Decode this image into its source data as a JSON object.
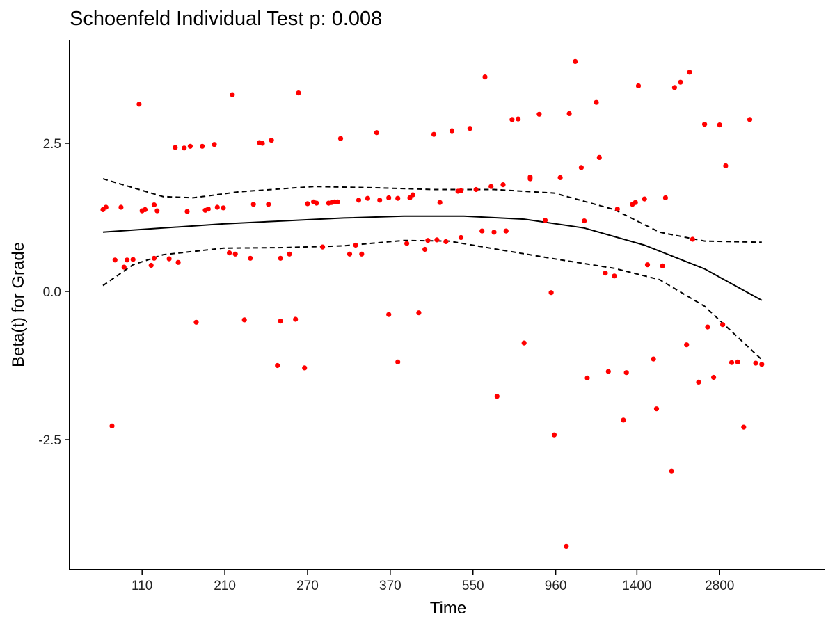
{
  "chart_data": {
    "type": "scatter",
    "title": "Schoenfeld Individual Test p: 0.008",
    "xlabel": "Time",
    "ylabel": "Beta(t) for Grade",
    "x_scale": "ordinal-rank",
    "x_tick_labels": [
      "110",
      "210",
      "270",
      "370",
      "550",
      "960",
      "1400",
      "2800"
    ],
    "x_tick_ranks": [
      13,
      40.5,
      68,
      95.5,
      123,
      150.5,
      177.5,
      205
    ],
    "x_rank_range": [
      0,
      229
    ],
    "y_tick_labels": [
      "2.5",
      "0.0",
      "-2.5"
    ],
    "y_tick_values": [
      2.5,
      0.0,
      -2.5
    ],
    "ylim": [
      -4.7,
      4.2
    ],
    "grid": false,
    "legend": "none",
    "colors": {
      "points": "#ff0000",
      "lines": "#000000"
    },
    "series": [
      {
        "type": "scatter",
        "points": [
          [
            0,
            1.38
          ],
          [
            1,
            1.42
          ],
          [
            3,
            -2.27
          ],
          [
            4,
            0.53
          ],
          [
            6,
            1.42
          ],
          [
            7,
            0.41
          ],
          [
            8,
            0.53
          ],
          [
            10,
            0.54
          ],
          [
            12,
            3.16
          ],
          [
            13,
            1.36
          ],
          [
            14,
            1.38
          ],
          [
            16,
            0.44
          ],
          [
            17,
            1.46
          ],
          [
            18,
            1.36
          ],
          [
            17,
            0.56
          ],
          [
            22,
            0.55
          ],
          [
            24,
            2.43
          ],
          [
            25,
            0.49
          ],
          [
            27,
            2.42
          ],
          [
            28,
            1.35
          ],
          [
            29,
            2.45
          ],
          [
            31,
            -0.52
          ],
          [
            33,
            2.45
          ],
          [
            34,
            1.37
          ],
          [
            35,
            1.39
          ],
          [
            37,
            2.48
          ],
          [
            38,
            1.42
          ],
          [
            40,
            1.41
          ],
          [
            42,
            0.65
          ],
          [
            43,
            3.32
          ],
          [
            44,
            0.63
          ],
          [
            47,
            -0.48
          ],
          [
            49,
            0.56
          ],
          [
            50,
            1.47
          ],
          [
            52,
            2.51
          ],
          [
            53,
            2.5
          ],
          [
            55,
            1.47
          ],
          [
            56,
            2.55
          ],
          [
            58,
            -1.25
          ],
          [
            59,
            0.56
          ],
          [
            59,
            -0.5
          ],
          [
            62,
            0.63
          ],
          [
            64,
            -0.47
          ],
          [
            65,
            3.35
          ],
          [
            67,
            -1.29
          ],
          [
            68,
            1.48
          ],
          [
            70,
            1.51
          ],
          [
            71,
            1.49
          ],
          [
            73,
            0.75
          ],
          [
            75,
            1.49
          ],
          [
            76,
            1.5
          ],
          [
            77,
            1.51
          ],
          [
            79,
            2.58
          ],
          [
            78,
            1.51
          ],
          [
            82,
            0.63
          ],
          [
            84,
            0.78
          ],
          [
            85,
            1.54
          ],
          [
            86,
            0.63
          ],
          [
            88,
            1.57
          ],
          [
            91,
            2.68
          ],
          [
            92,
            1.54
          ],
          [
            95,
            -0.39
          ],
          [
            95,
            1.58
          ],
          [
            98,
            -1.19
          ],
          [
            98,
            1.57
          ],
          [
            101,
            0.81
          ],
          [
            102,
            1.58
          ],
          [
            103,
            1.63
          ],
          [
            105,
            -0.36
          ],
          [
            107,
            0.71
          ],
          [
            108,
            0.86
          ],
          [
            110,
            2.65
          ],
          [
            111,
            0.87
          ],
          [
            112,
            1.5
          ],
          [
            114,
            0.84
          ],
          [
            116,
            2.71
          ],
          [
            118,
            1.69
          ],
          [
            119,
            0.91
          ],
          [
            119,
            1.7
          ],
          [
            122,
            2.75
          ],
          [
            124,
            1.72
          ],
          [
            126,
            1.02
          ],
          [
            127,
            3.62
          ],
          [
            129,
            1.77
          ],
          [
            130,
            1.0
          ],
          [
            131,
            -1.77
          ],
          [
            133,
            1.8
          ],
          [
            134,
            1.02
          ],
          [
            136,
            2.9
          ],
          [
            138,
            2.91
          ],
          [
            140,
            -0.87
          ],
          [
            142,
            1.93
          ],
          [
            142,
            1.9
          ],
          [
            145,
            2.99
          ],
          [
            147,
            1.2
          ],
          [
            149,
            -0.02
          ],
          [
            150,
            -2.42
          ],
          [
            152,
            1.92
          ],
          [
            154,
            -4.3
          ],
          [
            155,
            3.0
          ],
          [
            157,
            3.88
          ],
          [
            159,
            2.09
          ],
          [
            160,
            1.19
          ],
          [
            161,
            -1.46
          ],
          [
            164,
            3.19
          ],
          [
            165,
            2.26
          ],
          [
            167,
            0.31
          ],
          [
            168,
            -1.35
          ],
          [
            170,
            0.26
          ],
          [
            171,
            1.39
          ],
          [
            173,
            -2.17
          ],
          [
            174,
            -1.37
          ],
          [
            176,
            1.47
          ],
          [
            177,
            1.5
          ],
          [
            178,
            3.47
          ],
          [
            180,
            1.56
          ],
          [
            181,
            0.45
          ],
          [
            183,
            -1.14
          ],
          [
            184,
            -1.98
          ],
          [
            186,
            0.43
          ],
          [
            187,
            1.58
          ],
          [
            189,
            -3.03
          ],
          [
            190,
            3.44
          ],
          [
            192,
            3.53
          ],
          [
            194,
            -0.9
          ],
          [
            195,
            3.7
          ],
          [
            196,
            0.88
          ],
          [
            198,
            -1.53
          ],
          [
            200,
            2.82
          ],
          [
            201,
            -0.6
          ],
          [
            203,
            -1.45
          ],
          [
            205,
            2.81
          ],
          [
            206,
            -0.56
          ],
          [
            207,
            2.12
          ],
          [
            209,
            -1.2
          ],
          [
            211,
            -1.19
          ],
          [
            213,
            -2.29
          ],
          [
            215,
            2.9
          ],
          [
            217,
            -1.21
          ],
          [
            219,
            -1.23
          ]
        ]
      },
      {
        "type": "line",
        "style": "solid",
        "points": [
          [
            0,
            1.0
          ],
          [
            20,
            1.07
          ],
          [
            40,
            1.14
          ],
          [
            60,
            1.19
          ],
          [
            80,
            1.24
          ],
          [
            100,
            1.27
          ],
          [
            120,
            1.27
          ],
          [
            140,
            1.22
          ],
          [
            160,
            1.07
          ],
          [
            180,
            0.78
          ],
          [
            200,
            0.38
          ],
          [
            219,
            -0.15
          ]
        ]
      },
      {
        "type": "line",
        "style": "dashed",
        "points": [
          [
            0,
            1.9
          ],
          [
            10,
            1.75
          ],
          [
            20,
            1.6
          ],
          [
            30,
            1.58
          ],
          [
            45,
            1.68
          ],
          [
            70,
            1.77
          ],
          [
            90,
            1.75
          ],
          [
            110,
            1.72
          ],
          [
            130,
            1.72
          ],
          [
            150,
            1.66
          ],
          [
            170,
            1.38
          ],
          [
            185,
            1.0
          ],
          [
            200,
            0.85
          ],
          [
            219,
            0.83
          ]
        ]
      },
      {
        "type": "line",
        "style": "dashed",
        "points": [
          [
            0,
            0.1
          ],
          [
            10,
            0.45
          ],
          [
            20,
            0.62
          ],
          [
            40,
            0.73
          ],
          [
            60,
            0.74
          ],
          [
            80,
            0.77
          ],
          [
            100,
            0.86
          ],
          [
            115,
            0.85
          ],
          [
            130,
            0.72
          ],
          [
            150,
            0.55
          ],
          [
            170,
            0.39
          ],
          [
            185,
            0.2
          ],
          [
            200,
            -0.25
          ],
          [
            219,
            -1.15
          ]
        ]
      }
    ]
  }
}
